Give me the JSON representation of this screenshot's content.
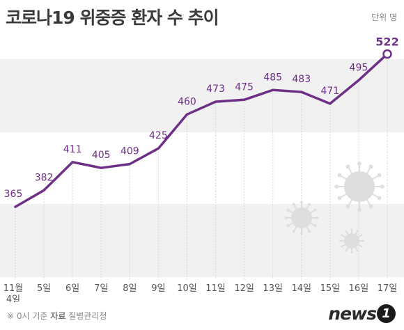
{
  "title": "코로나19 위중증 환자 수 추이",
  "unit_label": "단위 명",
  "footer": {
    "note": "※ 0시 기준",
    "source_label": "자료",
    "source": "질병관리청"
  },
  "logo": {
    "text": "news",
    "badge": "1"
  },
  "colors": {
    "line": "#6e2f86",
    "band": "#f1f1f1",
    "label": "#6e2f86",
    "tick": "#555555",
    "virus": "#dedede"
  },
  "chart_data": {
    "type": "line",
    "title": "코로나19 위중증 환자 수 추이",
    "categories": [
      "11월 4일",
      "5일",
      "6일",
      "7일",
      "8일",
      "9일",
      "10일",
      "11일",
      "12일",
      "13일",
      "14일",
      "15일",
      "16일",
      "17일"
    ],
    "tick_labels": [
      [
        "11월",
        "4일"
      ],
      [
        "5일"
      ],
      [
        "6일"
      ],
      [
        "7일"
      ],
      [
        "8일"
      ],
      [
        "9일"
      ],
      [
        "10일"
      ],
      [
        "11일"
      ],
      [
        "12일"
      ],
      [
        "13일"
      ],
      [
        "14일"
      ],
      [
        "15일"
      ],
      [
        "16일"
      ],
      [
        "17일"
      ]
    ],
    "values": [
      365,
      382,
      411,
      405,
      409,
      425,
      460,
      473,
      475,
      485,
      483,
      471,
      495,
      522
    ],
    "highlight_last": true,
    "ylim": [
      290,
      530
    ],
    "grid": false,
    "legend": "none"
  }
}
